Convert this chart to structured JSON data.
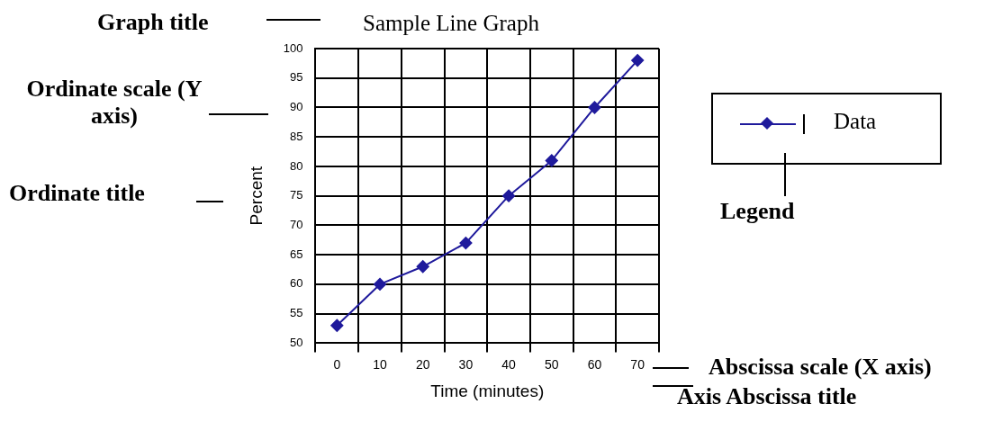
{
  "chart_data": {
    "type": "line",
    "title": "Sample Line Graph",
    "xlabel": "Time (minutes)",
    "ylabel": "Percent",
    "categories": [
      "0",
      "10",
      "20",
      "30",
      "40",
      "50",
      "60",
      "70"
    ],
    "series": [
      {
        "name": "Data",
        "color": "#1f1a9c",
        "values": [
          53,
          60,
          63,
          67,
          75,
          81,
          90,
          98
        ]
      }
    ],
    "ylim": [
      50,
      100
    ],
    "yticks": [
      50,
      55,
      60,
      65,
      70,
      75,
      80,
      85,
      90,
      95,
      100
    ],
    "grid": true,
    "legend": "right",
    "marker": "diamond",
    "annotations": [
      "Graph title",
      "Ordinate scale (Y axis)",
      "Ordinate title",
      "Legend",
      "Abscissa scale (X axis)",
      "Axis Abscissa title"
    ]
  }
}
